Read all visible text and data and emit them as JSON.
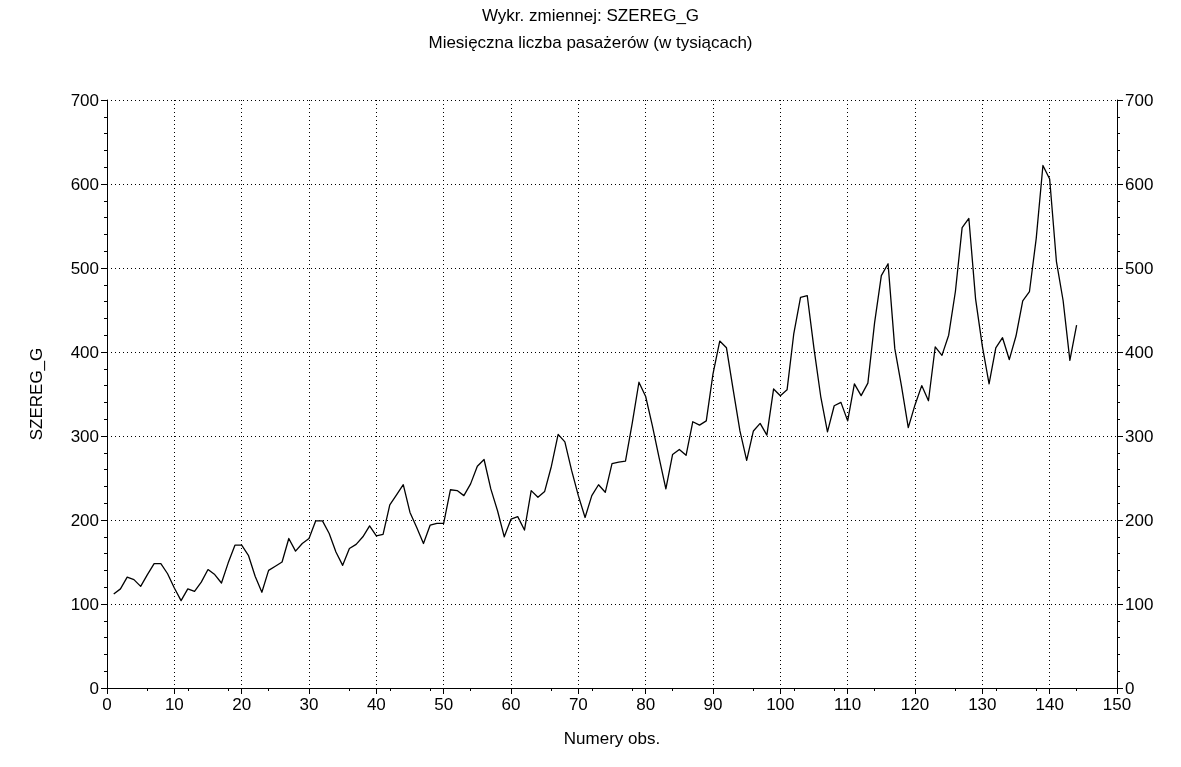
{
  "chart_data": {
    "type": "line",
    "title": "Wykr. zmiennej: SZEREG_G",
    "subtitle": "Miesięczna liczba pasażerów (w tysiącach)",
    "xlabel": "Numery obs.",
    "ylabel": "SZEREG_G",
    "x": [
      1,
      2,
      3,
      4,
      5,
      6,
      7,
      8,
      9,
      10,
      11,
      12,
      13,
      14,
      15,
      16,
      17,
      18,
      19,
      20,
      21,
      22,
      23,
      24,
      25,
      26,
      27,
      28,
      29,
      30,
      31,
      32,
      33,
      34,
      35,
      36,
      37,
      38,
      39,
      40,
      41,
      42,
      43,
      44,
      45,
      46,
      47,
      48,
      49,
      50,
      51,
      52,
      53,
      54,
      55,
      56,
      57,
      58,
      59,
      60,
      61,
      62,
      63,
      64,
      65,
      66,
      67,
      68,
      69,
      70,
      71,
      72,
      73,
      74,
      75,
      76,
      77,
      78,
      79,
      80,
      81,
      82,
      83,
      84,
      85,
      86,
      87,
      88,
      89,
      90,
      91,
      92,
      93,
      94,
      95,
      96,
      97,
      98,
      99,
      100,
      101,
      102,
      103,
      104,
      105,
      106,
      107,
      108,
      109,
      110,
      111,
      112,
      113,
      114,
      115,
      116,
      117,
      118,
      119,
      120,
      121,
      122,
      123,
      124,
      125,
      126,
      127,
      128,
      129,
      130,
      131,
      132,
      133,
      134,
      135,
      136,
      137,
      138,
      139,
      140,
      141,
      142,
      143,
      144
    ],
    "series": [
      {
        "color": "#000000",
        "values": [
          112,
          118,
          132,
          129,
          121,
          135,
          148,
          148,
          136,
          119,
          104,
          118,
          115,
          126,
          141,
          135,
          125,
          149,
          170,
          170,
          158,
          133,
          114,
          140,
          145,
          150,
          178,
          163,
          172,
          178,
          199,
          199,
          184,
          162,
          146,
          166,
          171,
          180,
          193,
          181,
          183,
          218,
          230,
          242,
          209,
          191,
          172,
          194,
          196,
          196,
          236,
          235,
          229,
          243,
          264,
          272,
          237,
          211,
          180,
          201,
          204,
          188,
          235,
          227,
          234,
          264,
          302,
          293,
          259,
          229,
          203,
          229,
          242,
          233,
          267,
          269,
          270,
          315,
          364,
          347,
          312,
          274,
          237,
          278,
          284,
          277,
          317,
          313,
          318,
          374,
          413,
          405,
          355,
          306,
          271,
          306,
          315,
          301,
          356,
          348,
          355,
          422,
          465,
          467,
          404,
          347,
          305,
          336,
          340,
          318,
          362,
          348,
          363,
          435,
          491,
          505,
          404,
          359,
          310,
          337,
          360,
          342,
          406,
          396,
          420,
          472,
          548,
          559,
          463,
          407,
          362,
          405,
          417,
          391,
          419,
          461,
          472,
          535,
          622,
          606,
          508,
          461,
          390,
          432
        ]
      }
    ],
    "xlim": [
      0,
      150
    ],
    "xticks": [
      0,
      10,
      20,
      30,
      40,
      50,
      60,
      70,
      80,
      90,
      100,
      110,
      120,
      130,
      140,
      150
    ],
    "ylim": [
      0,
      700
    ],
    "yticks": [
      0,
      100,
      200,
      300,
      400,
      500,
      600,
      700
    ],
    "y2lim": [
      0,
      700
    ],
    "y2ticks": [
      0,
      100,
      200,
      300,
      400,
      500,
      600,
      700
    ],
    "grid": true,
    "marker": "none",
    "line_style": "solid"
  }
}
